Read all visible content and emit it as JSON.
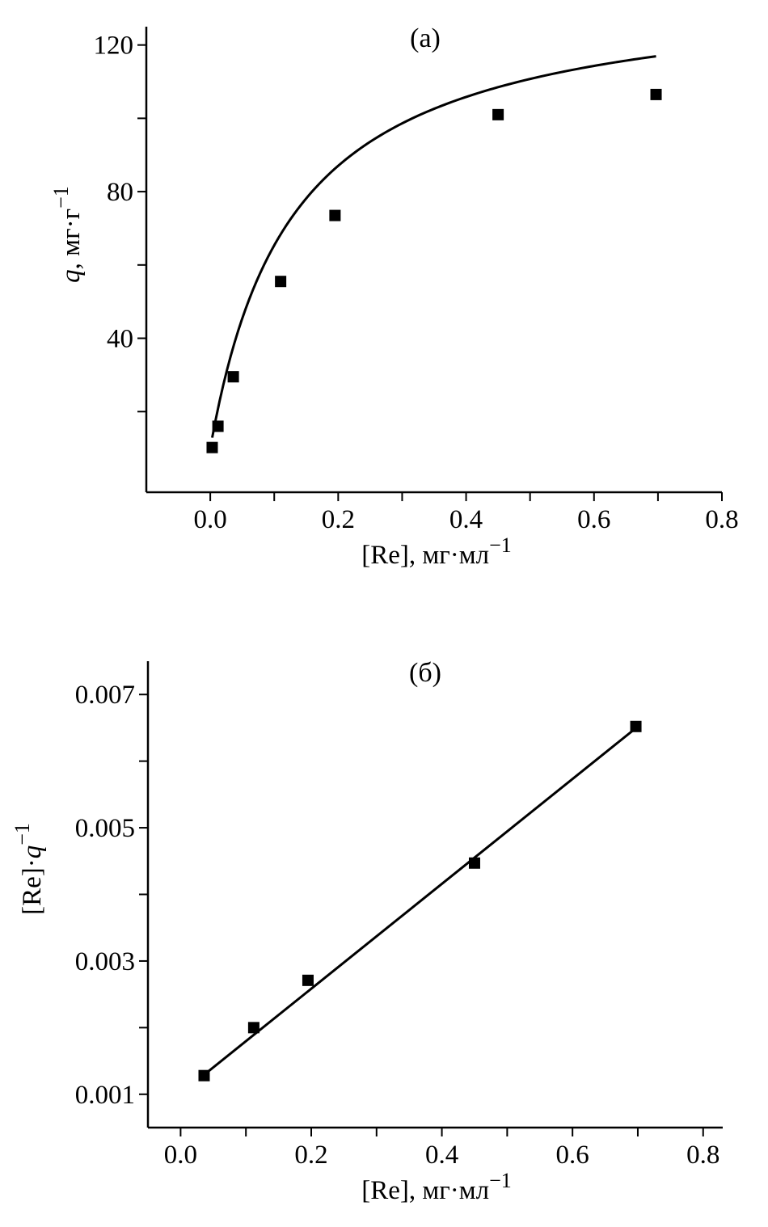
{
  "chart_data": [
    {
      "type": "scatter",
      "title": "(a)",
      "xlabel": "[Re], мг·мл−1",
      "xlabel_main": "[Re], мг·мл",
      "xlabel_sup": "−1",
      "ylabel_var": "q",
      "ylabel_rest": ", мг·г",
      "ylabel_sup": "−1",
      "xlim": [
        -0.1,
        0.8
      ],
      "ylim": [
        -2,
        125
      ],
      "xticks": [
        0.0,
        0.1,
        0.2,
        0.3,
        0.4,
        0.5,
        0.6,
        0.7,
        0.8
      ],
      "xtick_labels": [
        "0.0",
        "",
        "0.2",
        "",
        "0.4",
        "",
        "0.6",
        "",
        "0.8"
      ],
      "yticks": [
        20,
        40,
        60,
        80,
        100,
        120
      ],
      "ytick_labels": [
        "",
        "40",
        "",
        "80",
        "",
        "120"
      ],
      "points": [
        [
          0.003,
          10.2
        ],
        [
          0.012,
          16.0
        ],
        [
          0.036,
          29.5
        ],
        [
          0.11,
          55.5
        ],
        [
          0.195,
          73.5
        ],
        [
          0.45,
          101.0
        ],
        [
          0.697,
          106.5
        ]
      ],
      "fit_curve": {
        "type": "langmuir",
        "qmax": 126.7,
        "K": 7.76,
        "offset": 10.0,
        "x_range": [
          0.003,
          0.697
        ]
      }
    },
    {
      "type": "scatter",
      "title": "(б)",
      "xlabel": "[Re], мг·мл−1",
      "xlabel_main": "[Re], мг·мл",
      "xlabel_sup": "−1",
      "ylabel_main": "[Re]·q",
      "ylabel_pre": "[Re]·",
      "ylabel_var": "q",
      "ylabel_sup": "−1",
      "xlim": [
        -0.05,
        0.83
      ],
      "ylim": [
        0.0005,
        0.0075
      ],
      "xticks": [
        0.0,
        0.1,
        0.2,
        0.3,
        0.4,
        0.5,
        0.6,
        0.7,
        0.8
      ],
      "xtick_labels": [
        "0.0",
        "",
        "0.2",
        "",
        "0.4",
        "",
        "0.6",
        "",
        "0.8"
      ],
      "yticks": [
        0.001,
        0.002,
        0.003,
        0.004,
        0.005,
        0.006,
        0.007
      ],
      "ytick_labels": [
        "0.001",
        "",
        "0.003",
        "",
        "0.005",
        "",
        "0.007"
      ],
      "points": [
        [
          0.036,
          0.00128
        ],
        [
          0.112,
          0.002
        ],
        [
          0.195,
          0.00271
        ],
        [
          0.45,
          0.00447
        ],
        [
          0.697,
          0.00652
        ]
      ],
      "fit_line": {
        "slope": 0.00787,
        "intercept": 0.00101,
        "x_range": [
          0.036,
          0.697
        ]
      }
    }
  ]
}
